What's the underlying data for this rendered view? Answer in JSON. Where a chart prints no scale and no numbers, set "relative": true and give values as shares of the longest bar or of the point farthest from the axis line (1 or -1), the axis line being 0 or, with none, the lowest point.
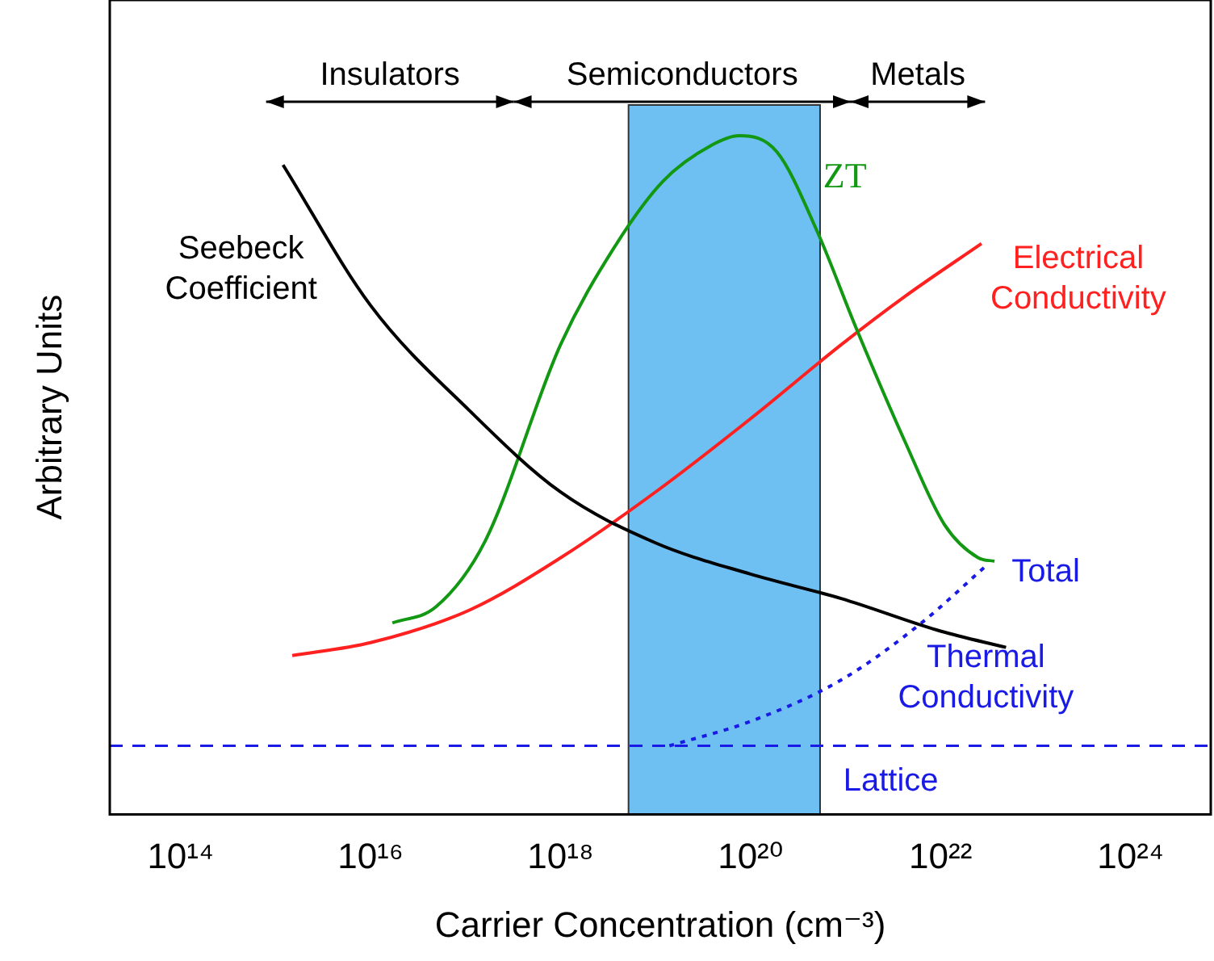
{
  "chart_data": {
    "type": "line",
    "relative": true,
    "xlabel": "Carrier Concentration (cm⁻³)",
    "ylabel": "Arbitrary Units",
    "log": "x",
    "xlim": [
      18000000000000.0,
      7e+24
    ],
    "xticks": [
      {
        "value": 100000000000000.0,
        "label": "10¹⁴"
      },
      {
        "value": 1e+16,
        "label": "10¹⁶"
      },
      {
        "value": 1e+18,
        "label": "10¹⁸"
      },
      {
        "value": 1e+20,
        "label": "10²⁰"
      },
      {
        "value": 1e+22,
        "label": "10²²"
      },
      {
        "value": 1e+24,
        "label": "10²⁴"
      }
    ],
    "series": [
      {
        "name": "Seebeck Coefficient",
        "color": "#000000",
        "x": [
          1200000000000000.0,
          1e+16,
          1.1e+17,
          1e+18,
          1e+19,
          1e+20,
          9e+20,
          1e+22,
          4.9e+22
        ],
        "values": [
          0.957,
          0.75,
          0.595,
          0.475,
          0.4,
          0.354,
          0.318,
          0.27,
          0.246
        ]
      },
      {
        "name": "ZT",
        "color": "#139813",
        "x": [
          1.7e+16,
          4.9e+16,
          1.6e+17,
          1e+18,
          3.7e+18,
          1.2e+19,
          3.9e+19,
          7.6e+19,
          1.9e+20,
          5e+20,
          1.3e+21,
          4.3e+21,
          1.1e+22,
          2.5e+22,
          3.7e+22
        ],
        "values": [
          0.282,
          0.306,
          0.402,
          0.692,
          0.836,
          0.933,
          0.986,
          1.0,
          0.976,
          0.86,
          0.716,
          0.547,
          0.427,
          0.378,
          0.373
        ]
      },
      {
        "name": "Electrical Conductivity",
        "color": "#ff2020",
        "x": [
          1500000000000000.0,
          1e+16,
          1.1e+17,
          1e+18,
          1e+19,
          1e+20,
          9e+20,
          4.3e+21,
          2.7e+22
        ],
        "values": [
          0.234,
          0.253,
          0.301,
          0.378,
          0.475,
          0.583,
          0.692,
          0.764,
          0.841
        ]
      },
      {
        "name": "Total",
        "color": "#1a1ae6",
        "line_style": "dotted",
        "x": [
          1.4e+19,
          1e+20,
          9e+20,
          6.3e+21,
          3e+22
        ],
        "values": [
          0.101,
          0.137,
          0.198,
          0.282,
          0.366
        ]
      }
    ],
    "ref_lines": [
      {
        "axis": "y",
        "value": 0.101,
        "label": "Lattice",
        "color": "#1a1ae6",
        "line_style": "dashed"
      }
    ],
    "bands": [
      {
        "axis": "x",
        "from": 5.2e+18,
        "to": 5.4e+20,
        "color": "#55b4f0"
      }
    ],
    "annotations": [
      "Insulators",
      "Semiconductors",
      "Metals",
      "Thermal Conductivity"
    ],
    "legend": false,
    "grid": false,
    "marker": "none"
  }
}
